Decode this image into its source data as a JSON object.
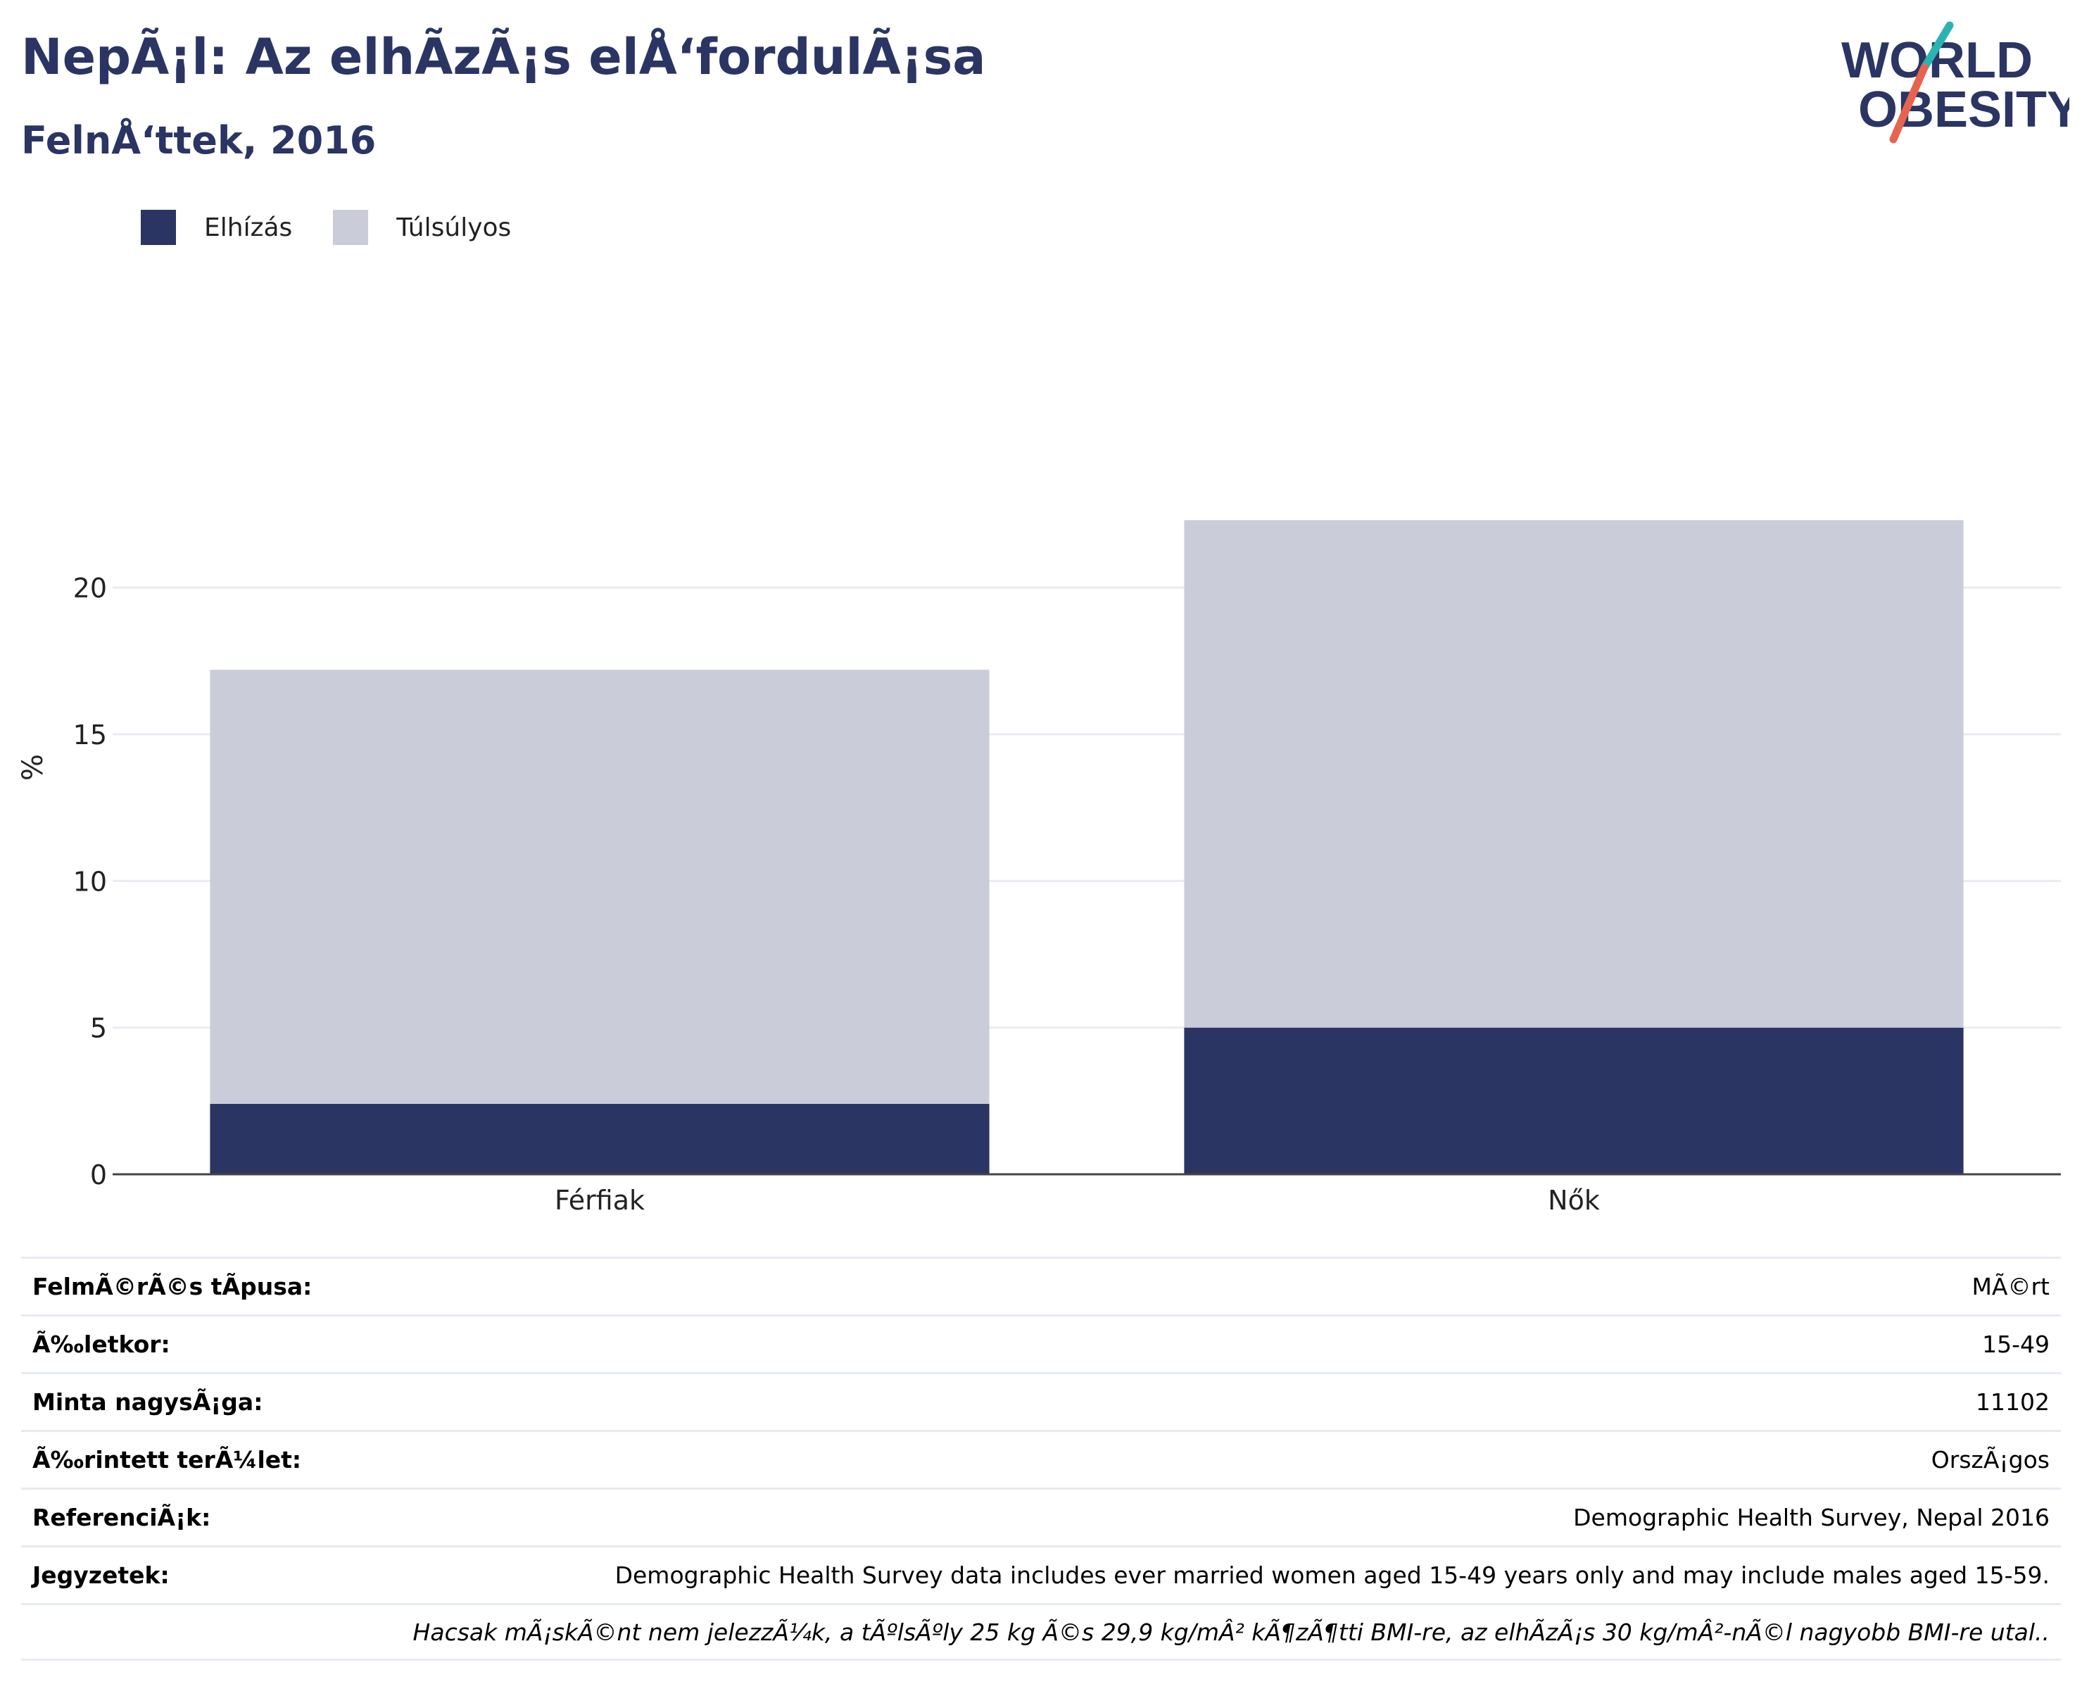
{
  "header": {
    "title": "NepÃ¡l: Az elhÃ­zÃ¡s elÅ‘fordulÃ¡sa",
    "subtitle": "FelnÅ‘ttek, 2016"
  },
  "logo": {
    "line1": "WORLD",
    "line2": "OBESITY",
    "slash_colors": [
      "#2bb3b1",
      "#e8634f"
    ],
    "text_color": "#2a3564"
  },
  "legend": [
    {
      "label": "Elhízás",
      "color": "#2a3564"
    },
    {
      "label": "Túlsúlyos",
      "color": "#cacdd9"
    }
  ],
  "chart_data": {
    "type": "bar",
    "stacked": true,
    "categories": [
      "Férfiak",
      "Nők"
    ],
    "series": [
      {
        "name": "Elhízás",
        "values": [
          2.4,
          5.0
        ],
        "color": "#2a3564"
      },
      {
        "name": "Túlsúlyos",
        "values": [
          14.8,
          17.3
        ],
        "color": "#cacdd9"
      }
    ],
    "title": "",
    "xlabel": "",
    "ylabel": "%",
    "ylim": [
      0,
      24
    ],
    "yticks": [
      0,
      5,
      10,
      15,
      20
    ],
    "grid": true,
    "legend_position": "top-left"
  },
  "info": [
    {
      "label": "FelmÃ©rÃ©s tÃpusa:",
      "value": "MÃ©rt"
    },
    {
      "label": "Ã‰letkor:",
      "value": "15-49"
    },
    {
      "label": "Minta nagysÃ¡ga:",
      "value": "11102"
    },
    {
      "label": "Ã‰rintett terÃ¼let:",
      "value": "OrszÃ¡gos"
    },
    {
      "label": "ReferenciÃ¡k:",
      "value": "Demographic Health Survey, Nepal 2016"
    },
    {
      "label": "Jegyzetek:",
      "value": "Demographic Health Survey data includes ever married women aged 15-49 years only and may include males aged 15-59."
    },
    {
      "label": "",
      "value": "Hacsak mÃ¡skÃ©nt nem jelezzÃ¼k, a tÃºlsÃºly 25 kg Ã©s 29,9 kg/mÂ² kÃ¶zÃ¶tti BMI-re, az elhÃ­zÃ¡s 30 kg/mÂ²-nÃ©l nagyobb BMI-re utal.."
    }
  ]
}
